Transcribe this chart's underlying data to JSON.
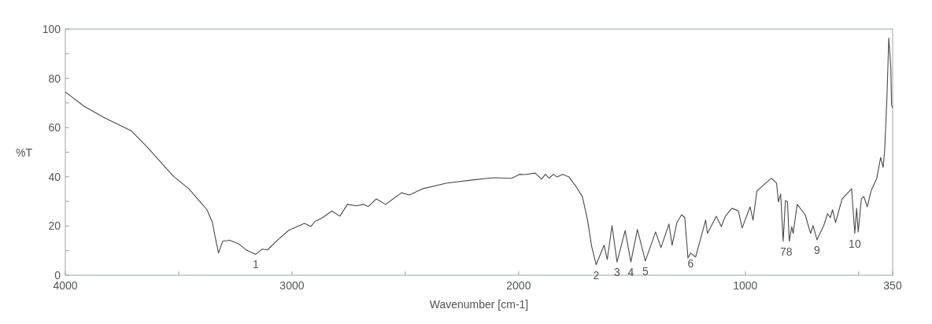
{
  "chart_data": {
    "type": "line",
    "xlabel": "Wavenumber [cm-1]",
    "ylabel": "%T",
    "xlim": [
      4000,
      350
    ],
    "ylim": [
      0,
      100
    ],
    "xticks": [
      4000,
      {
        "value": 3500,
        "label": null
      },
      3000,
      {
        "value": 2500,
        "label": null
      },
      2000,
      {
        "value": 1500,
        "label": null
      },
      1000,
      {
        "value": 500,
        "label": null
      },
      350
    ],
    "yticks": [
      0,
      {
        "value": 10,
        "label": null
      },
      20,
      {
        "value": 30,
        "label": null
      },
      40,
      {
        "value": 50,
        "label": null
      },
      60,
      {
        "value": 70,
        "label": null
      },
      80,
      {
        "value": 90,
        "label": null
      },
      100
    ],
    "grid": false,
    "marker": "none",
    "line_style": "solid",
    "series": [
      {
        "color": "#4a4a4a",
        "x": [
          4000,
          3918,
          3826,
          3708,
          3640,
          3524,
          3455,
          3375,
          3351,
          3340,
          3324,
          3306,
          3275,
          3236,
          3201,
          3160,
          3132,
          3108,
          3062,
          3015,
          2945,
          2917,
          2899,
          2865,
          2824,
          2789,
          2755,
          2715,
          2685,
          2663,
          2628,
          2587,
          2517,
          2483,
          2425,
          2320,
          2205,
          2112,
          2031,
          1997,
          1973,
          1927,
          1899,
          1882,
          1865,
          1847,
          1830,
          1806,
          1778,
          1748,
          1719,
          1696,
          1678,
          1658,
          1639,
          1623,
          1609,
          1588,
          1566,
          1530,
          1505,
          1476,
          1441,
          1396,
          1372,
          1337,
          1323,
          1302,
          1281,
          1267,
          1253,
          1241,
          1229,
          1219,
          1175,
          1167,
          1128,
          1106,
          1088,
          1059,
          1031,
          1014,
          979,
          966,
          949,
          910,
          885,
          862,
          854,
          844,
          833,
          823,
          814,
          806,
          795,
          789,
          771,
          736,
          712,
          701,
          684,
          654,
          637,
          625,
          615,
          602,
          573,
          531,
          517,
          509,
          502,
          488,
          477,
          462,
          444,
          420,
          403,
          392,
          385,
          375,
          367,
          358,
          355,
          350
        ],
        "values": [
          74.5,
          68.7,
          63.9,
          58.6,
          52.2,
          40.3,
          35.1,
          26.6,
          21.4,
          16,
          9,
          13.8,
          14.2,
          12.8,
          10.2,
          8.5,
          10.6,
          10.3,
          14.4,
          18.2,
          21.1,
          19.8,
          21.8,
          23.4,
          26.1,
          24,
          28.8,
          28.2,
          28.8,
          27.9,
          31,
          28.8,
          33.5,
          32.6,
          35.1,
          37.4,
          38.7,
          39.6,
          39.4,
          41,
          40.9,
          41.5,
          39,
          41,
          39.4,
          41,
          39.9,
          41,
          39.9,
          36.2,
          32,
          22.4,
          11.8,
          4.3,
          8.6,
          12.2,
          6.4,
          20.2,
          5.4,
          18.2,
          5.4,
          18.6,
          5.8,
          17.6,
          11.2,
          20.8,
          12.2,
          21.4,
          24.6,
          23.4,
          7,
          9,
          8,
          7.5,
          22.4,
          17,
          24,
          19.8,
          24,
          27.2,
          26.2,
          19.2,
          27.8,
          22.4,
          34.2,
          37.4,
          39.4,
          37.4,
          29.8,
          33,
          13.8,
          30.4,
          29.8,
          13.8,
          19.8,
          17,
          28.8,
          24.6,
          17,
          20.2,
          14.4,
          20.2,
          25,
          23.4,
          26.6,
          21.4,
          31,
          35.1,
          17,
          27.2,
          17.6,
          31,
          32,
          27.8,
          34.6,
          39.4,
          47.9,
          43.8,
          51,
          72.5,
          96.4,
          84.1,
          69.3,
          68
        ]
      }
    ],
    "annotations": [
      {
        "text": "1",
        "x": 3160,
        "y": 8.5
      },
      {
        "text": "2",
        "x": 1658,
        "y": 4.3
      },
      {
        "text": "3",
        "x": 1566,
        "y": 5.4
      },
      {
        "text": "4",
        "x": 1505,
        "y": 5.4
      },
      {
        "text": "5",
        "x": 1441,
        "y": 5.8
      },
      {
        "text": "6",
        "x": 1241,
        "y": 9
      },
      {
        "text": "7",
        "x": 833,
        "y": 13.8
      },
      {
        "text": "8",
        "x": 806,
        "y": 13.8
      },
      {
        "text": "9",
        "x": 684,
        "y": 14.4
      },
      {
        "text": "10",
        "x": 517,
        "y": 17
      }
    ]
  }
}
